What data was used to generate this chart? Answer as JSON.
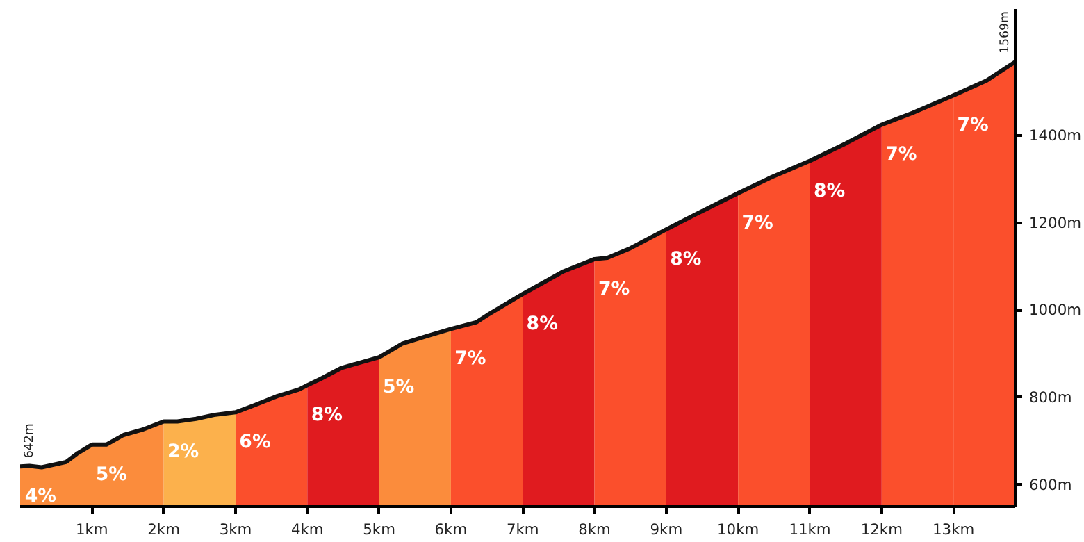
{
  "chart_data": {
    "type": "area",
    "xlim": [
      0,
      13.86
    ],
    "ylim": [
      550,
      1690
    ],
    "xticks": [
      {
        "value": 1,
        "label": "1km"
      },
      {
        "value": 2,
        "label": "2km"
      },
      {
        "value": 3,
        "label": "3km"
      },
      {
        "value": 4,
        "label": "4km"
      },
      {
        "value": 5,
        "label": "5km"
      },
      {
        "value": 6,
        "label": "6km"
      },
      {
        "value": 7,
        "label": "7km"
      },
      {
        "value": 8,
        "label": "8km"
      },
      {
        "value": 9,
        "label": "9km"
      },
      {
        "value": 10,
        "label": "10km"
      },
      {
        "value": 11,
        "label": "11km"
      },
      {
        "value": 12,
        "label": "12km"
      },
      {
        "value": 13,
        "label": "13km"
      }
    ],
    "yticks": [
      {
        "value": 600,
        "label": "600m"
      },
      {
        "value": 800,
        "label": "800m"
      },
      {
        "value": 1000,
        "label": "1000m"
      },
      {
        "value": 1200,
        "label": "1200m"
      },
      {
        "value": 1400,
        "label": "1400m"
      }
    ],
    "grid": false,
    "series": [
      {
        "color": "#fb8c3c",
        "x": [
          0,
          0.13,
          0.3,
          0.64,
          0.79,
          1.0
        ],
        "values": [
          642,
          643,
          640,
          652,
          671,
          692
        ]
      },
      {
        "color": "#fb8c3c",
        "x": [
          1.0,
          1.2,
          1.44,
          1.7,
          2.0
        ],
        "values": [
          692,
          692,
          714,
          726,
          745
        ]
      },
      {
        "color": "#fcb14c",
        "x": [
          2.0,
          2.19,
          2.45,
          2.7,
          3.0
        ],
        "values": [
          745,
          745,
          751,
          760,
          766
        ]
      },
      {
        "color": "#fb4f2c",
        "x": [
          3.0,
          3.26,
          3.58,
          3.88,
          4.0
        ],
        "values": [
          766,
          782,
          803,
          818,
          828
        ]
      },
      {
        "color": "#e01b1f",
        "x": [
          4.0,
          4.19,
          4.48,
          5.0
        ],
        "values": [
          828,
          843,
          868,
          892
        ]
      },
      {
        "color": "#fb8c3c",
        "x": [
          5.0,
          5.32,
          5.69,
          6.0
        ],
        "values": [
          892,
          923,
          942,
          957
        ]
      },
      {
        "color": "#fb4f2c",
        "x": [
          6.0,
          6.35,
          6.5,
          7.0
        ],
        "values": [
          957,
          972,
          988,
          1037
        ]
      },
      {
        "color": "#e01b1f",
        "x": [
          7.0,
          7.57,
          8.0
        ],
        "values": [
          1037,
          1089,
          1117
        ]
      },
      {
        "color": "#fb4f2c",
        "x": [
          8.0,
          8.18,
          8.5,
          9.0
        ],
        "values": [
          1117,
          1120,
          1142,
          1185
        ]
      },
      {
        "color": "#e01b1f",
        "x": [
          9.0,
          9.44,
          10.0
        ],
        "values": [
          1185,
          1222,
          1268
        ]
      },
      {
        "color": "#fb4f2c",
        "x": [
          10.0,
          10.47,
          11.0
        ],
        "values": [
          1268,
          1305,
          1342
        ]
      },
      {
        "color": "#e01b1f",
        "x": [
          11.0,
          11.5,
          12.0
        ],
        "values": [
          1342,
          1382,
          1425
        ]
      },
      {
        "color": "#fb4f2c",
        "x": [
          12.0,
          12.43,
          13.0
        ],
        "values": [
          1425,
          1452,
          1492
        ]
      },
      {
        "color": "#fb4f2c",
        "x": [
          13.0,
          13.46,
          13.86
        ],
        "values": [
          1492,
          1526,
          1569
        ]
      },
      {
        "type": "line",
        "color": "#111111",
        "x": [
          0,
          0.13,
          0.3,
          0.64,
          0.79,
          1.0,
          1.2,
          1.44,
          1.7,
          2.0,
          2.19,
          2.45,
          2.7,
          3.0,
          3.26,
          3.58,
          3.88,
          4.0,
          4.19,
          4.48,
          5.0,
          5.32,
          5.69,
          6.0,
          6.35,
          6.5,
          7.0,
          7.57,
          8.0,
          8.18,
          8.5,
          9.0,
          9.44,
          10.0,
          10.47,
          11.0,
          11.5,
          12.0,
          12.43,
          13.0,
          13.46,
          13.86
        ],
        "values": [
          642,
          643,
          640,
          652,
          671,
          692,
          692,
          714,
          726,
          745,
          745,
          751,
          760,
          766,
          782,
          803,
          818,
          828,
          843,
          868,
          892,
          923,
          942,
          957,
          972,
          988,
          1037,
          1089,
          1117,
          1120,
          1142,
          1185,
          1222,
          1268,
          1305,
          1342,
          1382,
          1425,
          1452,
          1492,
          1526,
          1569
        ]
      }
    ],
    "annotations": [
      {
        "text": "4%",
        "x": 0.13,
        "y": 643
      },
      {
        "text": "5%",
        "x": 1.0,
        "y": 692
      },
      {
        "text": "2%",
        "x": 2.0,
        "y": 745
      },
      {
        "text": "6%",
        "x": 3.0,
        "y": 766
      },
      {
        "text": "8%",
        "x": 4.0,
        "y": 828
      },
      {
        "text": "5%",
        "x": 5.0,
        "y": 892
      },
      {
        "text": "7%",
        "x": 6.0,
        "y": 957
      },
      {
        "text": "8%",
        "x": 7.0,
        "y": 1037
      },
      {
        "text": "7%",
        "x": 8.0,
        "y": 1117
      },
      {
        "text": "8%",
        "x": 9.0,
        "y": 1185
      },
      {
        "text": "7%",
        "x": 10.0,
        "y": 1268
      },
      {
        "text": "8%",
        "x": 11.0,
        "y": 1342
      },
      {
        "text": "7%",
        "x": 12.0,
        "y": 1425
      },
      {
        "text": "7%",
        "x": 13.0,
        "y": 1492
      },
      {
        "text": "642m",
        "x": 0,
        "y": 642
      },
      {
        "text": "1569m",
        "x": 13.86,
        "y": 1569
      }
    ]
  }
}
